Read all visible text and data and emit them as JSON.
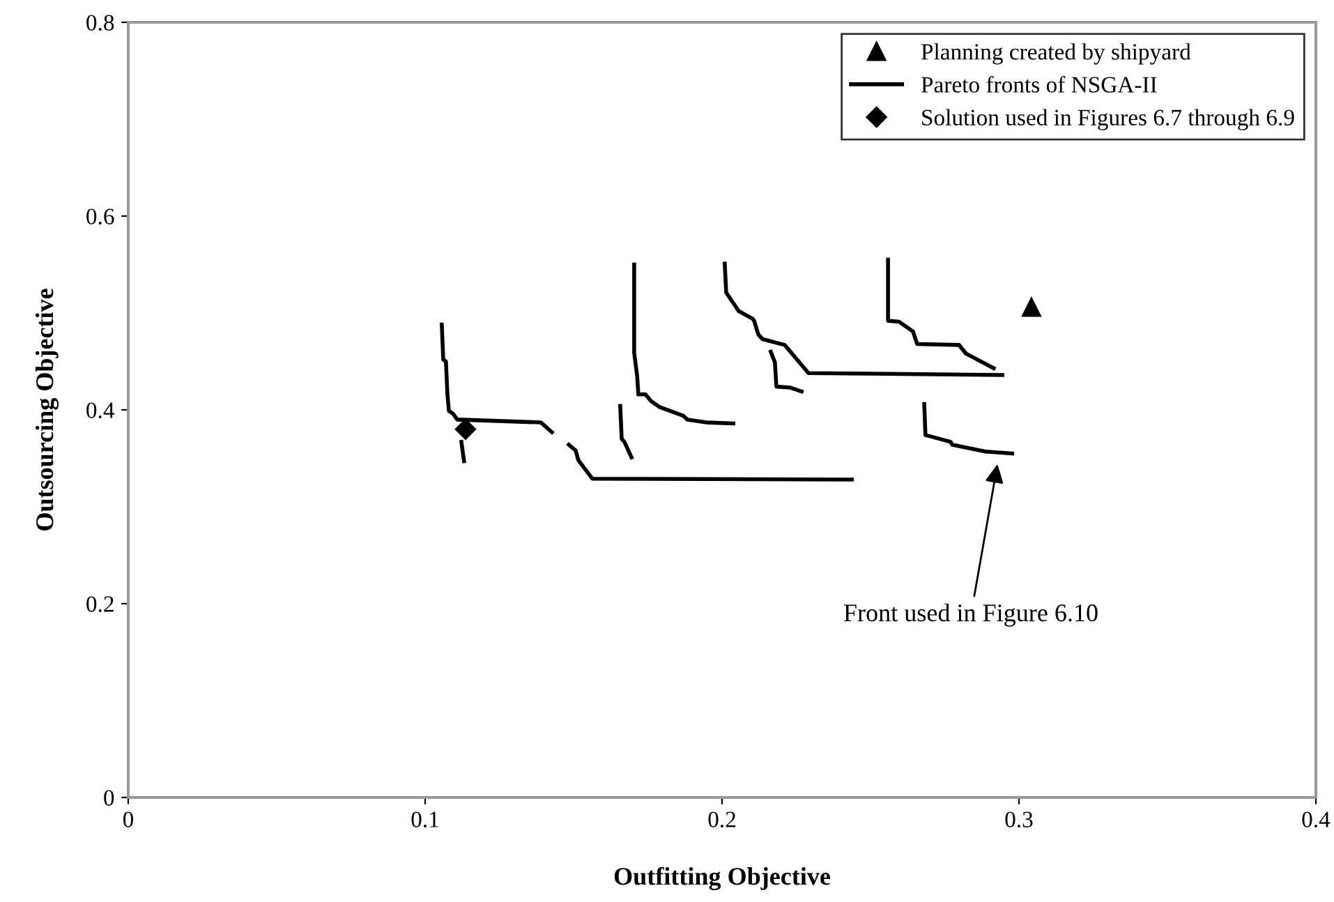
{
  "chart_data": {
    "type": "scatter",
    "xlabel": "Outfitting Objective",
    "ylabel": "Outsourcing Objective",
    "xlim": [
      0,
      0.4
    ],
    "ylim": [
      0,
      0.8
    ],
    "xticks": [
      0,
      0.1,
      0.2,
      0.3,
      0.4
    ],
    "yticks": [
      0,
      0.2,
      0.4,
      0.6,
      0.8
    ],
    "grid": false,
    "legend": "top right",
    "series": [
      {
        "name": "Planning created by shipyard",
        "marker": "triangle",
        "color": "#000000",
        "x": [
          0.3042
        ],
        "values": [
          0.506
        ]
      },
      {
        "name": "Pareto fronts of NSGA-II",
        "type": "line",
        "marker": "none",
        "line_style": "solid",
        "color": "#000000",
        "x": [
          0.1056,
          0.1061,
          0.107,
          0.1075,
          0.108,
          0.1094,
          0.1108,
          0.139,
          0.1427,
          null,
          0.1122,
          0.1131,
          null,
          0.1484,
          0.1507,
          0.1516,
          0.1563,
          0.2437,
          null,
          0.1657,
          0.1662,
          0.1671,
          0.1695,
          null,
          0.1704,
          0.1704,
          0.1714,
          0.1718,
          0.1742,
          0.1761,
          0.1789,
          0.1869,
          0.1883,
          0.1948,
          0.2038,
          null,
          0.2009,
          0.2014,
          0.2056,
          0.2103,
          0.2108,
          0.2122,
          0.2136,
          0.2211,
          0.2291,
          0.2944,
          null,
          0.2164,
          0.2178,
          0.2183,
          0.223,
          0.2268,
          null,
          0.2559,
          0.2559,
          0.2596,
          0.2643,
          0.2657,
          0.2798,
          0.2822,
          0.2915,
          null,
          0.2681,
          0.2685,
          0.277,
          0.2775,
          0.2887,
          0.2977
        ],
        "values": [
          0.488,
          0.452,
          0.45,
          0.416,
          0.399,
          0.396,
          0.39,
          0.387,
          0.377,
          null,
          0.367,
          0.347,
          null,
          0.364,
          0.358,
          0.348,
          0.329,
          0.328,
          null,
          0.404,
          0.37,
          0.367,
          0.351,
          null,
          0.55,
          0.459,
          0.435,
          0.416,
          0.416,
          0.409,
          0.403,
          0.394,
          0.39,
          0.387,
          0.386,
          null,
          0.551,
          0.521,
          0.502,
          0.494,
          0.492,
          0.478,
          0.473,
          0.467,
          0.438,
          0.436,
          null,
          0.46,
          0.449,
          0.424,
          0.423,
          0.419,
          null,
          0.555,
          0.492,
          0.491,
          0.481,
          0.468,
          0.467,
          0.458,
          0.443,
          null,
          0.406,
          0.374,
          0.367,
          0.364,
          0.357,
          0.355
        ]
      },
      {
        "name": "Solution used in Figures 6.7 through 6.9",
        "marker": "diamond",
        "color": "#000000",
        "x": [
          0.1136
        ],
        "values": [
          0.38
        ]
      }
    ],
    "annotations": [
      {
        "text": "Front used in Figure 6.10",
        "x": 0.293,
        "y": 0.348
      }
    ]
  }
}
